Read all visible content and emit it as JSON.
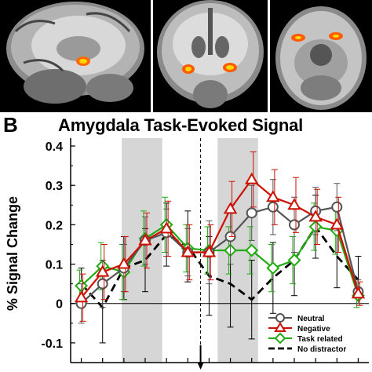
{
  "panel_a": {
    "images": [
      {
        "view": "sagittal"
      },
      {
        "view": "coronal"
      },
      {
        "view": "axial"
      }
    ]
  },
  "panel_b": {
    "letter": "B"
  },
  "chart_data": {
    "type": "line",
    "title": "Amygdala Task-Evoked Signal",
    "xlabel": "",
    "ylabel": "% Signal Change",
    "ylim": [
      -0.15,
      0.42
    ],
    "xlim": [
      0.5,
      14.5
    ],
    "yticks": [
      -0.1,
      0,
      0.1,
      0.2,
      0.3,
      0.4
    ],
    "ytick_labels": [
      "-0.1",
      "0",
      "0.1",
      "0.2",
      "0.3",
      "0.4"
    ],
    "x": [
      1,
      2,
      3,
      4,
      5,
      6,
      7,
      8,
      9,
      10,
      11,
      12,
      13,
      14
    ],
    "shaded_regions": [
      [
        2.9,
        4.8
      ],
      [
        7.4,
        9.3
      ]
    ],
    "event_marker_x": 6.6,
    "zero_line": true,
    "legend_position": "bottom-right",
    "series": [
      {
        "name": "Neutral",
        "color": "#555555",
        "marker": "circle",
        "dashed": false,
        "values": [
          0.0,
          0.05,
          0.09,
          0.16,
          0.18,
          0.13,
          0.13,
          0.17,
          0.23,
          0.245,
          0.2,
          0.235,
          0.245,
          0.03
        ],
        "errors": [
          0.05,
          0.06,
          0.06,
          0.06,
          0.06,
          0.06,
          0.08,
          0.07,
          0.07,
          0.07,
          0.07,
          0.06,
          0.06,
          0.03
        ]
      },
      {
        "name": "Negative",
        "color": "#cc1100",
        "marker": "triangle",
        "dashed": false,
        "values": [
          0.015,
          0.08,
          0.1,
          0.16,
          0.19,
          0.13,
          0.13,
          0.24,
          0.315,
          0.27,
          0.25,
          0.22,
          0.2,
          0.025
        ],
        "errors": [
          0.06,
          0.07,
          0.07,
          0.07,
          0.07,
          0.07,
          0.07,
          0.07,
          0.07,
          0.07,
          0.07,
          0.07,
          0.07,
          0.03
        ]
      },
      {
        "name": "Task related",
        "color": "#22aa11",
        "marker": "diamond",
        "dashed": false,
        "values": [
          0.045,
          0.095,
          0.08,
          0.165,
          0.2,
          0.14,
          0.135,
          0.135,
          0.135,
          0.09,
          0.11,
          0.195,
          0.185,
          0.02
        ],
        "errors": [
          0.04,
          0.06,
          0.07,
          0.07,
          0.07,
          0.06,
          0.06,
          0.06,
          0.06,
          0.06,
          0.06,
          0.06,
          0.06,
          0.03
        ]
      },
      {
        "name": "No distractor",
        "color": "#000000",
        "marker": "none",
        "dashed": true,
        "values": [
          0.05,
          -0.01,
          0.09,
          0.11,
          0.175,
          0.145,
          0.07,
          0.05,
          0.01,
          0.065,
          0.11,
          0.195,
          0.12,
          0.06
        ],
        "errors": [
          0.04,
          0.09,
          0.08,
          0.08,
          0.08,
          0.09,
          0.1,
          0.11,
          0.1,
          0.09,
          0.09,
          0.08,
          0.08,
          0.06
        ]
      }
    ]
  }
}
